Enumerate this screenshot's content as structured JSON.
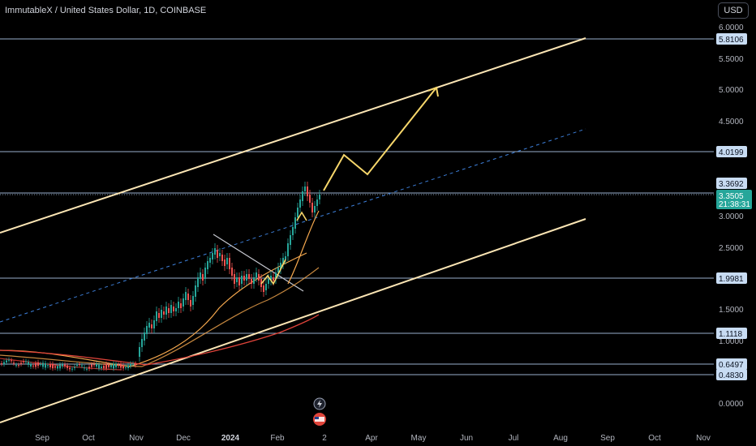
{
  "header": {
    "title": "ImmutableX / United States Dollar, 1D, COINBASE",
    "currency_button": "USD"
  },
  "price_axis": {
    "ticks": [
      "6.0000",
      "5.5000",
      "5.0000",
      "4.5000",
      "3.0000",
      "2.5000",
      "1.5000",
      "1.0000",
      "0.0000"
    ]
  },
  "levels": [
    "5.8106",
    "4.0199",
    "3.3692",
    "1.9981",
    "1.1118",
    "0.6497",
    "0.4830"
  ],
  "current_price": {
    "price": "3.3505",
    "countdown": "21:38:31",
    "color": "#26a69a"
  },
  "time_axis": {
    "labels": [
      "Sep",
      "Oct",
      "Nov",
      "Dec",
      "2024",
      "Feb",
      "2",
      "Apr",
      "May",
      "Jun",
      "Jul",
      "Aug",
      "Sep",
      "Oct",
      "Nov"
    ]
  },
  "colors": {
    "level_line": "#b2cdf0",
    "channel_line": "#fbe5b4",
    "projection_line": "#f7d76b",
    "midline": "#3d7fd9",
    "up_candle": "#26a69a",
    "down_candle": "#ef5350",
    "ma_orange": "#f5a84e",
    "ma_red": "#e0443a",
    "ma_darkred": "#b32f2a"
  },
  "icons": [
    "lightning-icon",
    "flag-icon"
  ]
}
